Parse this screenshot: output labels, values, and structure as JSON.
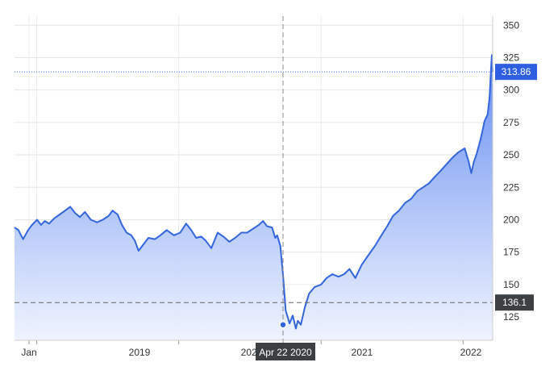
{
  "chart_data": {
    "type": "area",
    "x_axis": {
      "labels": [
        "Jan",
        "2019",
        "2020",
        "2021",
        "2022"
      ]
    },
    "y_axis": {
      "ticks": [
        125,
        150,
        175,
        200,
        225,
        250,
        275,
        300,
        325,
        350
      ],
      "range": [
        107,
        357
      ]
    },
    "x_range": [
      "2018-11-05",
      "2022-03-18"
    ],
    "series": [
      {
        "points": [
          [
            "2018-11-05",
            194
          ],
          [
            "2018-11-15",
            192
          ],
          [
            "2018-11-27",
            185
          ],
          [
            "2018-12-10",
            192
          ],
          [
            "2018-12-20",
            196
          ],
          [
            "2019-01-02",
            200
          ],
          [
            "2019-01-12",
            196
          ],
          [
            "2019-01-22",
            199
          ],
          [
            "2019-02-02",
            197
          ],
          [
            "2019-02-15",
            201
          ],
          [
            "2019-03-01",
            204
          ],
          [
            "2019-03-15",
            207
          ],
          [
            "2019-03-28",
            210
          ],
          [
            "2019-04-10",
            205
          ],
          [
            "2019-04-22",
            202
          ],
          [
            "2019-05-05",
            206
          ],
          [
            "2019-05-20",
            200
          ],
          [
            "2019-06-05",
            198
          ],
          [
            "2019-06-20",
            200
          ],
          [
            "2019-07-05",
            203
          ],
          [
            "2019-07-15",
            207
          ],
          [
            "2019-07-28",
            204
          ],
          [
            "2019-08-08",
            196
          ],
          [
            "2019-08-20",
            190
          ],
          [
            "2019-09-01",
            188
          ],
          [
            "2019-09-10",
            184
          ],
          [
            "2019-09-20",
            176
          ],
          [
            "2019-09-30",
            180
          ],
          [
            "2019-10-15",
            186
          ],
          [
            "2019-11-01",
            185
          ],
          [
            "2019-11-15",
            188
          ],
          [
            "2019-12-01",
            192
          ],
          [
            "2019-12-20",
            188
          ],
          [
            "2020-01-05",
            190
          ],
          [
            "2020-01-20",
            197
          ],
          [
            "2020-02-02",
            192
          ],
          [
            "2020-02-15",
            186
          ],
          [
            "2020-02-28",
            187
          ],
          [
            "2020-03-10",
            184
          ],
          [
            "2020-03-25",
            178
          ],
          [
            "2020-04-10",
            190
          ],
          [
            "2020-04-25",
            187
          ],
          [
            "2020-05-10",
            183
          ],
          [
            "2020-05-25",
            186
          ],
          [
            "2020-06-10",
            190
          ],
          [
            "2020-06-25",
            190
          ],
          [
            "2020-07-10",
            193
          ],
          [
            "2020-07-25",
            196
          ],
          [
            "2020-08-05",
            199
          ],
          [
            "2020-08-15",
            195
          ],
          [
            "2020-08-28",
            194
          ],
          [
            "2020-09-05",
            186
          ],
          [
            "2020-09-10",
            188
          ],
          [
            "2020-09-18",
            180
          ],
          [
            "2020-09-25",
            158
          ],
          [
            "2020-10-02",
            130
          ],
          [
            "2020-10-12",
            120
          ],
          [
            "2020-10-20",
            126
          ],
          [
            "2020-10-28",
            116
          ],
          [
            "2020-11-02",
            122
          ],
          [
            "2020-11-10",
            119
          ],
          [
            "2020-11-20",
            132
          ],
          [
            "2020-12-01",
            143
          ],
          [
            "2020-12-15",
            148
          ],
          [
            "2021-01-01",
            150
          ],
          [
            "2021-01-15",
            155
          ],
          [
            "2021-01-30",
            158
          ],
          [
            "2021-02-15",
            156
          ],
          [
            "2021-03-01",
            158
          ],
          [
            "2021-03-15",
            162
          ],
          [
            "2021-03-30",
            155
          ],
          [
            "2021-04-15",
            165
          ],
          [
            "2021-05-01",
            172
          ],
          [
            "2021-05-20",
            180
          ],
          [
            "2021-06-05",
            188
          ],
          [
            "2021-06-20",
            195
          ],
          [
            "2021-07-05",
            203
          ],
          [
            "2021-07-20",
            207
          ],
          [
            "2021-08-05",
            213
          ],
          [
            "2021-08-20",
            216
          ],
          [
            "2021-09-05",
            222
          ],
          [
            "2021-09-20",
            225
          ],
          [
            "2021-10-05",
            228
          ],
          [
            "2021-10-20",
            233
          ],
          [
            "2021-11-05",
            238
          ],
          [
            "2021-11-20",
            243
          ],
          [
            "2021-12-05",
            248
          ],
          [
            "2021-12-20",
            252
          ],
          [
            "2022-01-05",
            255
          ],
          [
            "2022-01-15",
            245
          ],
          [
            "2022-01-22",
            236
          ],
          [
            "2022-01-28",
            244
          ],
          [
            "2022-02-05",
            251
          ],
          [
            "2022-02-15",
            262
          ],
          [
            "2022-02-25",
            276
          ],
          [
            "2022-03-05",
            281
          ],
          [
            "2022-03-10",
            294
          ],
          [
            "2022-03-14",
            318
          ],
          [
            "2022-03-16",
            327
          ],
          [
            "2022-03-18",
            314
          ]
        ],
        "color": "#3366dd"
      }
    ],
    "last_value_label": "313.86",
    "crosshair": {
      "date_label": "Apr 22 2020",
      "value_label": "136.1",
      "value": 136.1
    },
    "grid": true,
    "fill_colors": [
      "#5b86f0",
      "#eef2fe"
    ],
    "label_colors": {
      "last_value_bg": "#2e5fe0",
      "crosshair_bg": "#3c4043"
    }
  }
}
